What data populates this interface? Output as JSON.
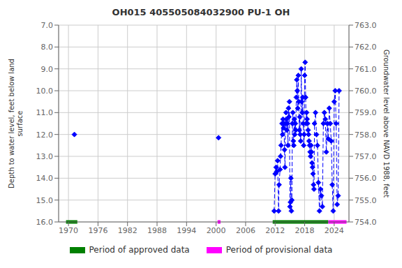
{
  "chart_data": {
    "type": "line",
    "title": "OH015 405505084032900 PU-1 OH",
    "ylabel": "Depth to water level, feet below land\nsurface",
    "y2label": "Groundwater level above NAVD 1988, feet",
    "xlim": [
      1968,
      2027
    ],
    "xticks": [
      1970,
      1976,
      1982,
      1988,
      1994,
      2000,
      2006,
      2012,
      2018,
      2024
    ],
    "ylim": [
      16.0,
      7.0
    ],
    "yticks": [
      {
        "value": 7.0,
        "label": "7.0"
      },
      {
        "value": 8.0,
        "label": "8.0"
      },
      {
        "value": 9.0,
        "label": "9.0"
      },
      {
        "value": 10.0,
        "label": "10.0"
      },
      {
        "value": 11.0,
        "label": "11.0"
      },
      {
        "value": 12.0,
        "label": "12.0"
      },
      {
        "value": 13.0,
        "label": "13.0"
      },
      {
        "value": 14.0,
        "label": "14.0"
      },
      {
        "value": 15.0,
        "label": "15.0"
      },
      {
        "value": 16.0,
        "label": "16.0"
      }
    ],
    "y2lim": [
      754.0,
      763.0
    ],
    "y2ticks": [
      {
        "value": 754.0,
        "label": "754.0"
      },
      {
        "value": 755.0,
        "label": "755.0"
      },
      {
        "value": 756.0,
        "label": "756.0"
      },
      {
        "value": 757.0,
        "label": "757.0"
      },
      {
        "value": 758.0,
        "label": "758.0"
      },
      {
        "value": 759.0,
        "label": "759.0"
      },
      {
        "value": 760.0,
        "label": "760.0"
      },
      {
        "value": 761.0,
        "label": "761.0"
      },
      {
        "value": 762.0,
        "label": "762.0"
      },
      {
        "value": 763.0,
        "label": "763.0"
      }
    ],
    "grid": true,
    "legend": "bottom",
    "series": [
      {
        "color": "#0000ff",
        "line_style": "dashed",
        "marker": "diamond",
        "x": [
          2011.8,
          2012.0,
          2012.2,
          2012.3,
          2012.5,
          2012.7,
          2012.8,
          2013.0,
          2013.1,
          2013.2,
          2013.4,
          2013.5,
          2013.6,
          2013.7,
          2013.8,
          2013.9,
          2014.0,
          2014.1,
          2014.2,
          2014.3,
          2014.4,
          2014.5,
          2014.6,
          2014.7,
          2014.8,
          2014.9,
          2015.0,
          2015.1,
          2015.2,
          2015.3,
          2015.4,
          2015.5,
          2015.6,
          2015.7,
          2015.8,
          2015.9,
          2016.0,
          2016.1,
          2016.2,
          2016.3,
          2016.4,
          2016.5,
          2016.6,
          2016.7,
          2016.8,
          2016.9,
          2017.0,
          2017.1,
          2017.2,
          2017.3,
          2017.4,
          2017.5,
          2017.6,
          2017.7,
          2017.8,
          2017.9,
          2018.0,
          2018.1,
          2018.2,
          2018.3,
          2018.4,
          2018.5,
          2018.6,
          2018.7,
          2018.8,
          2018.9,
          2019.0,
          2019.1,
          2019.2,
          2019.3,
          2019.4,
          2019.5,
          2019.6,
          2019.7,
          2019.8,
          2019.9,
          2020.0,
          2020.2,
          2020.4,
          2020.6,
          2020.8,
          2021.0,
          2021.2,
          2021.4,
          2021.6,
          2021.8,
          2022.0,
          2022.2,
          2022.4,
          2022.6,
          2022.8,
          2023.0,
          2023.2,
          2023.4,
          2023.6,
          2023.8,
          2024.0,
          2024.2,
          2024.4,
          2024.6,
          2024.8,
          2025.0
        ],
        "values": [
          15.5,
          13.8,
          13.5,
          13.7,
          13.2,
          15.5,
          14.3,
          13.6,
          13.0,
          12.5,
          11.5,
          12.0,
          11.3,
          11.7,
          11.5,
          12.7,
          13.5,
          11.5,
          11.0,
          11.3,
          11.8,
          11.5,
          12.5,
          10.8,
          11.2,
          10.5,
          15.3,
          15.1,
          14.0,
          15.5,
          15.0,
          11.5,
          11.0,
          12.3,
          12.5,
          11.3,
          12.0,
          11.5,
          11.8,
          10.3,
          9.5,
          10.0,
          10.8,
          9.3,
          10.5,
          11.8,
          11.2,
          12.0,
          12.3,
          9.0,
          10.5,
          11.0,
          10.3,
          11.5,
          12.5,
          12.0,
          9.3,
          8.7,
          10.3,
          11.5,
          11.0,
          11.3,
          11.5,
          11.8,
          12.0,
          12.3,
          12.5,
          12.8,
          13.0,
          12.5,
          12.8,
          13.3,
          13.5,
          13.8,
          14.3,
          14.5,
          11.5,
          11.0,
          12.0,
          12.5,
          14.2,
          15.5,
          14.5,
          14.8,
          15.3,
          11.5,
          11.0,
          11.3,
          12.8,
          11.5,
          12.2,
          10.8,
          11.5,
          12.3,
          14.3,
          15.5,
          10.5,
          10.0,
          11.5,
          15.2,
          14.8,
          10.0
        ]
      },
      {
        "color": "#0000ff",
        "line_style": "none",
        "marker": "diamond",
        "x": [
          1971.2,
          2000.5
        ],
        "values": [
          12.0,
          12.15
        ]
      }
    ],
    "periods": [
      {
        "name": "Period of approved data",
        "color": "#008000",
        "y": 16.0,
        "ranges": [
          [
            1969.5,
            1971.8
          ],
          [
            2011.5,
            2022.8
          ]
        ]
      },
      {
        "name": "Period of provisional data",
        "color": "#ff00ff",
        "y": 16.0,
        "ranges": [
          [
            2000.3,
            2000.9
          ],
          [
            2022.8,
            2026.5
          ]
        ]
      }
    ]
  }
}
